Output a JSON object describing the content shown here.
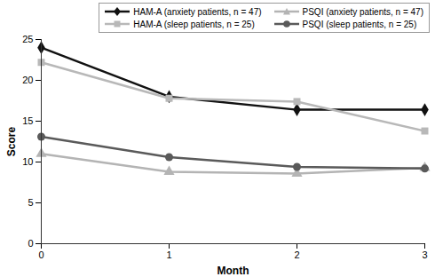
{
  "chart_data": {
    "type": "line",
    "x": [
      0,
      1,
      2,
      3
    ],
    "xlabel": "Month",
    "ylabel": "Score",
    "xlim": [
      0,
      3
    ],
    "xticks": [
      0,
      1,
      2,
      3
    ],
    "ylim": [
      0,
      25
    ],
    "yticks": [
      0,
      5,
      10,
      15,
      20,
      25
    ],
    "grid": false,
    "legend": "top-right",
    "series": [
      {
        "name": "HAM-A (anxiety patients, n = 47)",
        "color": "#111111",
        "marker": "diamond",
        "values": [
          24,
          18,
          16.4,
          16.4
        ]
      },
      {
        "name": "PSQI (anxiety patients, n = 47)",
        "color": "#b4b4b4",
        "marker": "triangle",
        "values": [
          11,
          8.8,
          8.6,
          9.3
        ]
      },
      {
        "name": "HAM-A (sleep patients, n = 25)",
        "color": "#b8b8b8",
        "marker": "square",
        "values": [
          22.2,
          17.8,
          17.4,
          13.8
        ]
      },
      {
        "name": "PSQI (sleep patients, n = 25)",
        "color": "#5a5a5a",
        "marker": "circle",
        "values": [
          13.1,
          10.6,
          9.4,
          9.2
        ]
      }
    ]
  }
}
